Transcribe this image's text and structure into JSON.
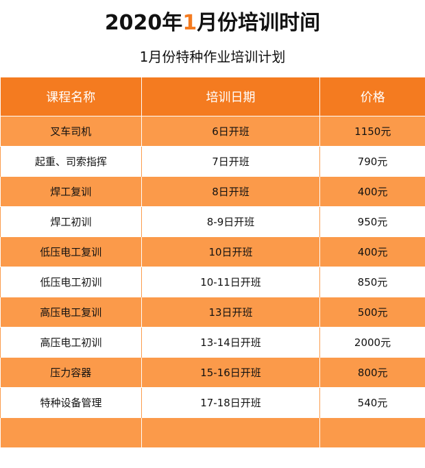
{
  "header": {
    "title_prefix": "2020年",
    "title_highlight": "1",
    "title_suffix": "月份培训时间",
    "subtitle": "1月份特种作业培训计划"
  },
  "colors": {
    "accent": "#f47b20",
    "row_fill": "#fb9a4a"
  },
  "table": {
    "columns": [
      "课程名称",
      "培训日期",
      "价格"
    ],
    "rows": [
      [
        "叉车司机",
        "6日开班",
        "1150元"
      ],
      [
        "起重、司索指挥",
        "7日开班",
        "790元"
      ],
      [
        "焊工复训",
        "8日开班",
        "400元"
      ],
      [
        "焊工初训",
        "8-9日开班",
        "950元"
      ],
      [
        "低压电工复训",
        "10日开班",
        "400元"
      ],
      [
        "低压电工初训",
        "10-11日开班",
        "850元"
      ],
      [
        "高压电工复训",
        "13日开班",
        "500元"
      ],
      [
        "高压电工初训",
        "13-14日开班",
        "2000元"
      ],
      [
        "压力容器",
        "15-16日开班",
        "800元"
      ],
      [
        "特种设备管理",
        "17-18日开班",
        "540元"
      ],
      [
        "",
        "",
        ""
      ]
    ]
  }
}
